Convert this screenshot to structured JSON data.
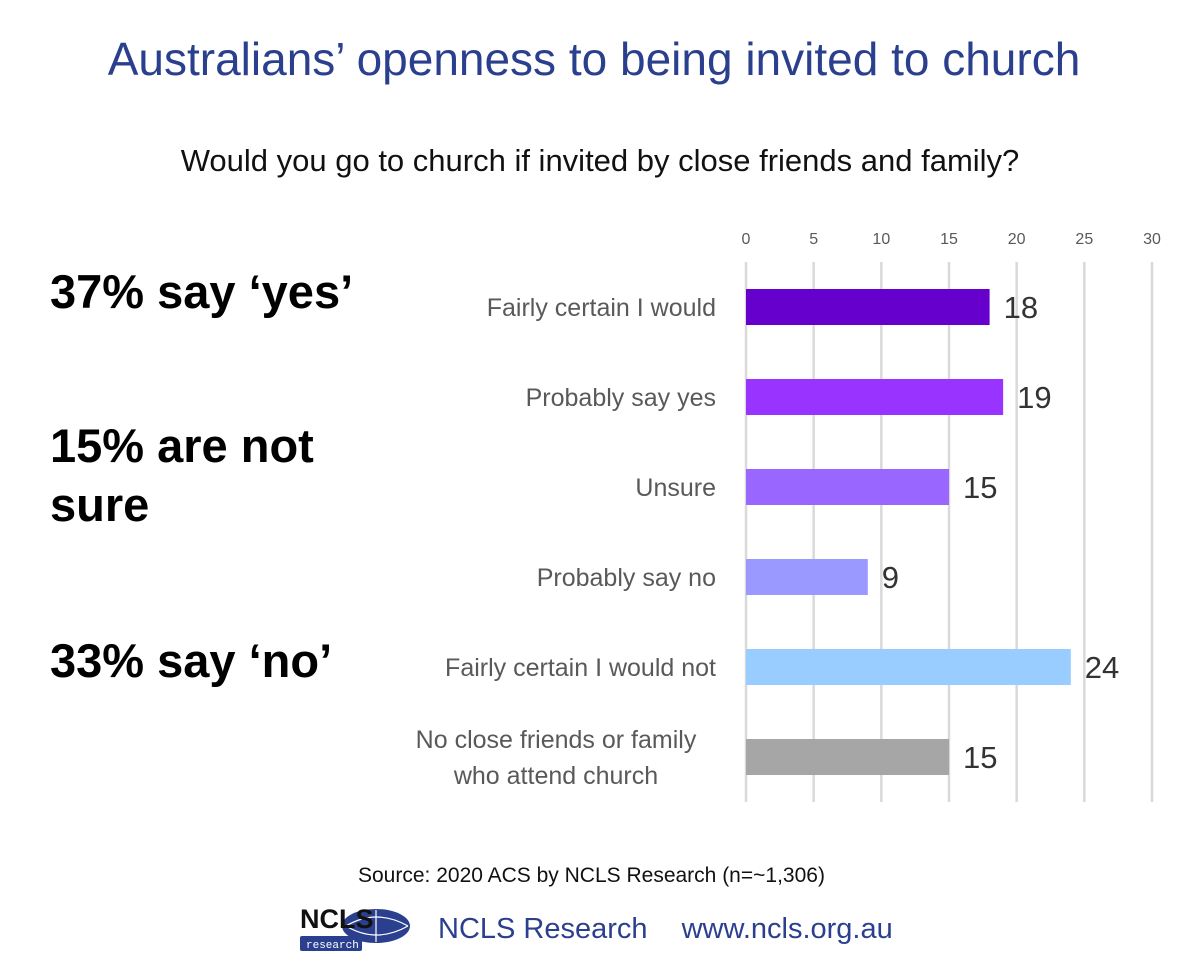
{
  "title": "Australians’ openness to being invited to church",
  "subtitle": "Would you go to church if invited by close friends and family?",
  "callouts": {
    "yes": "37% say ‘yes’",
    "unsure": "15% are not sure",
    "no": "33% say ‘no’"
  },
  "source": "Source: 2020 ACS by NCLS Research (n=~1,306)",
  "footer": {
    "org": "NCLS Research",
    "url": "www.ncls.org.au"
  },
  "logo": {
    "text": "NCLS",
    "subtext": "research",
    "color": "#2b3f8f"
  },
  "chart_data": {
    "type": "bar",
    "orientation": "horizontal",
    "categories": [
      "Fairly certain I would",
      "Probably say yes",
      "Unsure",
      "Probably say no",
      "Fairly certain I would not",
      "No close friends or family who attend church"
    ],
    "category_label_lines": [
      [
        "Fairly certain I would"
      ],
      [
        "Probably say yes"
      ],
      [
        "Unsure"
      ],
      [
        "Probably say no"
      ],
      [
        "Fairly certain I would not"
      ],
      [
        "No close friends or family",
        "who attend church"
      ]
    ],
    "values": [
      18,
      19,
      15,
      9,
      24,
      15
    ],
    "colors": [
      "#6600cc",
      "#9933ff",
      "#9966ff",
      "#9999ff",
      "#99ccff",
      "#a6a6a6"
    ],
    "xlim": [
      0,
      30
    ],
    "xticks": [
      0,
      5,
      10,
      15,
      20,
      25,
      30
    ],
    "axis_position": "top",
    "grid": true,
    "legend": "none"
  }
}
